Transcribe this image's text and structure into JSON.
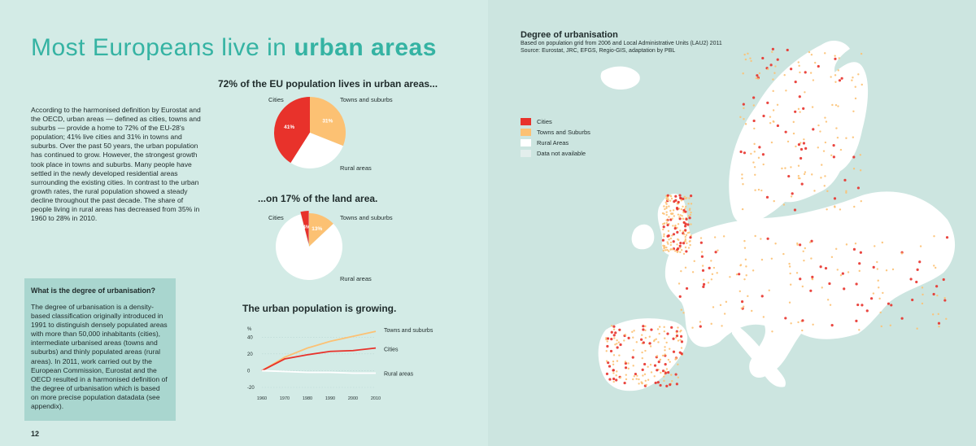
{
  "title": {
    "part1": "Most Europeans live in ",
    "part2": "urban areas"
  },
  "intro": "According to the harmonised definition by Eurostat and the OECD, urban areas — defined as cities, towns and suburbs — provide a home to 72% of the EU-28's population; 41% live cities and 31% in towns and suburbs. Over the past 50 years, the urban population has continued to grow. However, the strongest growth took place in towns and suburbs. Many people have settled in the newly developed residential areas surrounding the existing cities. In contrast to the urban growth rates, the rural population showed a steady decline throughout the past decade. The share of people living in rural areas has decreased from 35% in 1960 to 28% in 2010.",
  "box": {
    "title": "What is the degree of urbanisation?",
    "text": "The degree of urbanisation is a density-based classification originally introduced in 1991 to distinguish densely populated areas with more than 50,000 inhabitants (cities), intermediate urbanised areas (towns and suburbs) and thinly populated areas (rural areas). In 2011, work carried out by the European Commission, Eurostat and the OECD resulted in a harmonised definition of the degree of urbanisation which is based on more precise population datadata (see appendix)."
  },
  "page_number": "12",
  "colors": {
    "cities": "#e8322b",
    "towns": "#fcc173",
    "rural": "#ffffff",
    "na": "#e3eeec",
    "accent": "#35b3a3"
  },
  "map": {
    "title": "Degree of urbanisation",
    "subtitle": "Based on population grid from 2006 and Local Administrative Units (LAU2) 2011",
    "source": "Source: Eurostat, JRC, EFGS, Regio-GIS, adaptation by PBL",
    "legend": [
      "Cities",
      "Towns and Suburbs",
      "Rural Areas",
      "Data not available"
    ]
  },
  "chart_data": [
    {
      "type": "pie",
      "title": "72% of the EU population lives in urban areas...",
      "labels": [
        "Cities",
        "Towns and suburbs",
        "Rural areas"
      ],
      "values": [
        41,
        31,
        28
      ],
      "value_labels": [
        "41%",
        "31%",
        ""
      ]
    },
    {
      "type": "pie",
      "title": "...on 17% of the land area.",
      "labels": [
        "Cities",
        "Towns and suburbs",
        "Rural areas"
      ],
      "values": [
        4,
        13,
        83
      ],
      "value_labels": [
        "4%",
        "13%",
        ""
      ]
    },
    {
      "type": "line",
      "title": "The urban population is growing.",
      "ylabel": "%",
      "x": [
        1960,
        1970,
        1980,
        1990,
        2000,
        2010
      ],
      "x_tick_labels": [
        "1960",
        "1970",
        "1980",
        "1990",
        "2000",
        "2010"
      ],
      "y_ticks": [
        40,
        20,
        0,
        -20
      ],
      "ylim": [
        -20,
        50
      ],
      "series": [
        {
          "name": "Towns and suburbs",
          "values": [
            0,
            16,
            27,
            35,
            41,
            47
          ]
        },
        {
          "name": "Cities",
          "values": [
            0,
            14,
            19,
            23,
            24,
            27
          ]
        },
        {
          "name": "Rural areas",
          "values": [
            0,
            -1,
            -2,
            -2,
            -3,
            -3
          ]
        }
      ]
    }
  ]
}
